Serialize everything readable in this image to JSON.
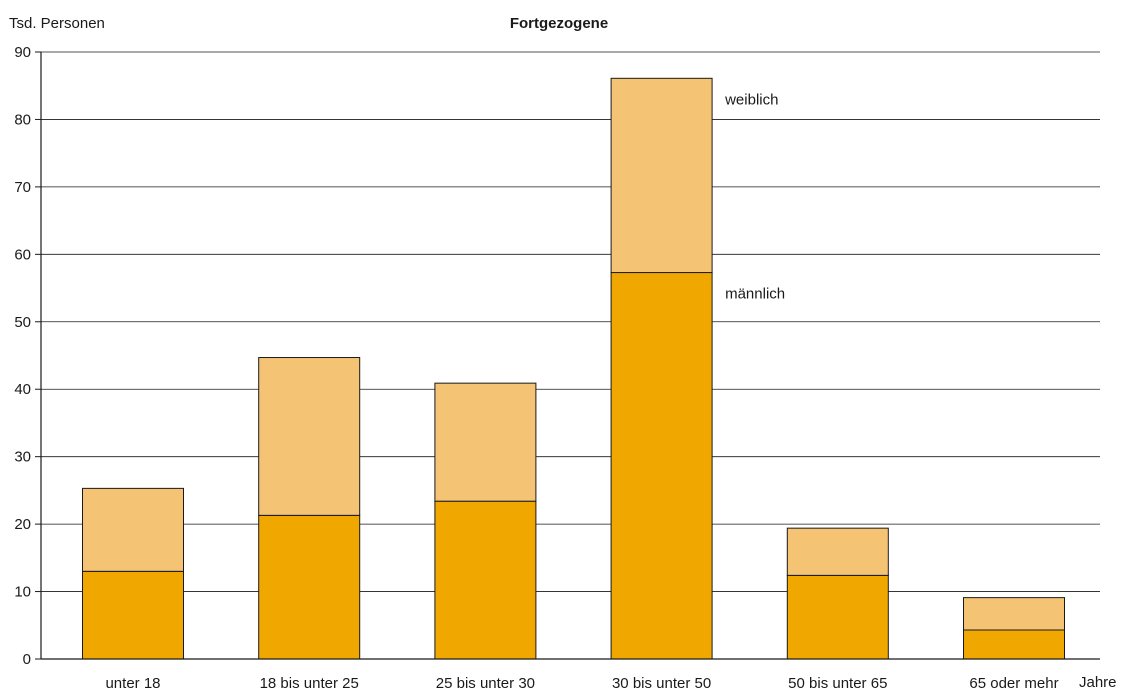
{
  "chart_data": {
    "type": "bar",
    "stacked": true,
    "title": "Fortgezogene",
    "ylabel": "Tsd. Personen",
    "xlabel": "Jahre",
    "ylim": [
      0,
      90
    ],
    "yticks": [
      0,
      10,
      20,
      30,
      40,
      50,
      60,
      70,
      80,
      90
    ],
    "grid": true,
    "categories": [
      "unter 18",
      "18 bis unter 25",
      "25 bis unter 30",
      "30 bis unter 50",
      "50 bis unter 65",
      "65 oder mehr"
    ],
    "series": [
      {
        "name": "männlich",
        "color": "#f0a800",
        "values": [
          13.0,
          21.3,
          23.4,
          57.3,
          12.4,
          4.3
        ]
      },
      {
        "name": "weiblich",
        "color": "#f4c474",
        "values": [
          12.3,
          23.4,
          17.5,
          28.8,
          7.0,
          4.8
        ]
      }
    ]
  }
}
